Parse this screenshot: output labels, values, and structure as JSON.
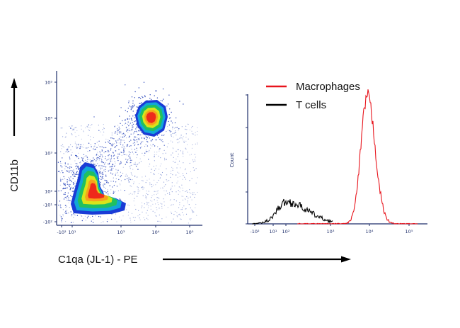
{
  "chart_data": [
    {
      "type": "scatter",
      "xlabel": "C1qa (JL-1) - PE",
      "ylabel": "CD11b",
      "x_ticks": [
        "-10²",
        "10¹",
        "10³",
        "10⁴",
        "10⁵"
      ],
      "y_ticks": [
        "10⁵",
        "10⁴",
        "10³",
        "10²",
        "-10¹",
        "-10²"
      ],
      "populations": [
        {
          "x_center": "10¹",
          "y_center": "-10¹",
          "density": "high"
        },
        {
          "x_center": "10⁴",
          "y_center": "10⁴",
          "density": "high"
        }
      ]
    },
    {
      "type": "histogram",
      "ylabel": "Count",
      "x_ticks": [
        "-10²",
        "10¹",
        "10²",
        "10³",
        "10⁴",
        "10⁵"
      ],
      "legend_position": "top",
      "series": [
        {
          "name": "Macrophages",
          "color": "#e8141c",
          "peak_x": "10⁴",
          "relative_peak": 1.0
        },
        {
          "name": "T cells",
          "color": "#000000",
          "peak_x": "10²",
          "relative_peak": 0.17
        }
      ]
    }
  ]
}
